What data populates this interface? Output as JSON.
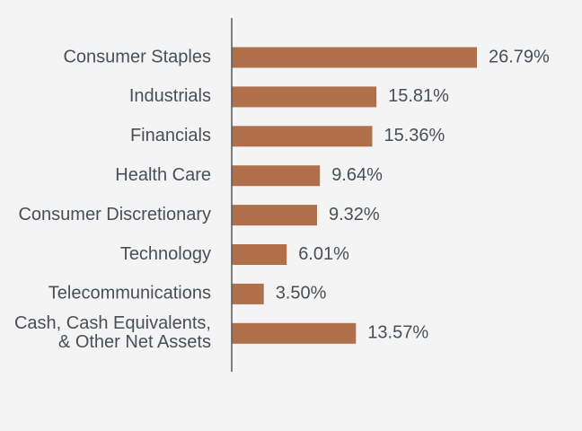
{
  "chart_data": {
    "type": "bar",
    "orientation": "horizontal",
    "categories": [
      "Consumer Staples",
      "Industrials",
      "Financials",
      "Health Care",
      "Consumer Discretionary",
      "Technology",
      "Telecommunications",
      "Cash, Cash Equivalents,\n& Other Net Assets"
    ],
    "values": [
      26.79,
      15.81,
      15.36,
      9.64,
      9.32,
      6.01,
      3.5,
      13.57
    ],
    "value_labels": [
      "26.79%",
      "15.81%",
      "15.36%",
      "9.64%",
      "9.32%",
      "6.01%",
      "3.50%",
      "13.57%"
    ],
    "title": "",
    "xlabel": "",
    "ylabel": "",
    "xlim": [
      0,
      30
    ],
    "grid": false,
    "legend": "none",
    "colors": {
      "bar": "#b0704b",
      "axis": "#555a5f",
      "text": "#4a4f55",
      "background": "#f4f4f4"
    }
  }
}
